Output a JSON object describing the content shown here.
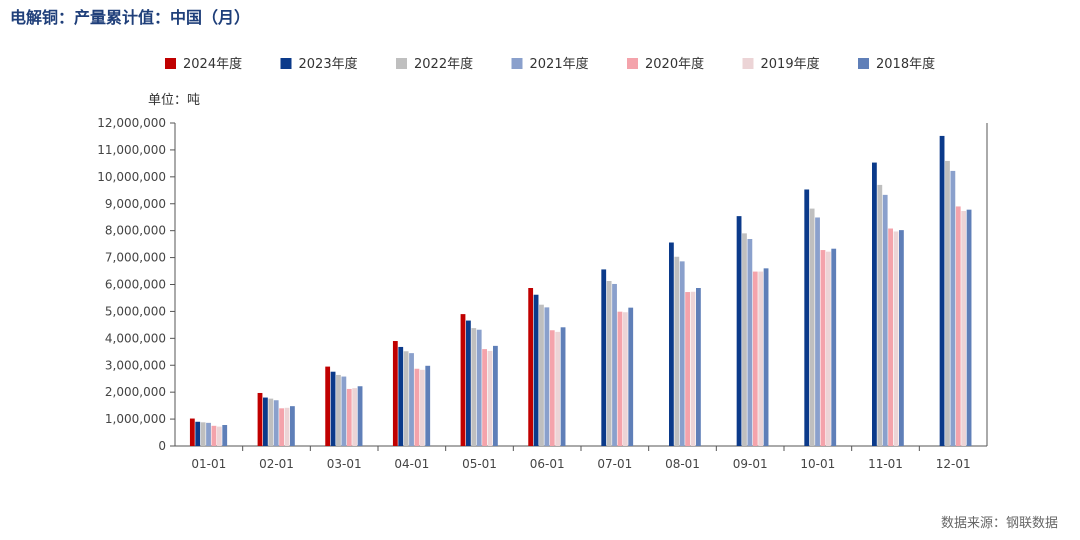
{
  "header": {
    "title": "电解铜：产量累计值：中国（月）"
  },
  "footer": {
    "source": "数据来源：钢联数据"
  },
  "chart_data": {
    "type": "bar",
    "title": "电解铜：产量累计值：中国（月）",
    "unit_label": "单位：吨",
    "xlabel": "",
    "ylabel": "",
    "ylim": [
      0,
      12000000
    ],
    "yticks": [
      0,
      1000000,
      2000000,
      3000000,
      4000000,
      5000000,
      6000000,
      7000000,
      8000000,
      9000000,
      10000000,
      11000000,
      12000000
    ],
    "ytick_labels": [
      "0",
      "1,000,000",
      "2,000,000",
      "3,000,000",
      "4,000,000",
      "5,000,000",
      "6,000,000",
      "7,000,000",
      "8,000,000",
      "9,000,000",
      "10,000,000",
      "11,000,000",
      "12,000,000"
    ],
    "legend_position": "top",
    "grid": false,
    "categories": [
      "01-01",
      "02-01",
      "03-01",
      "04-01",
      "05-01",
      "06-01",
      "07-01",
      "08-01",
      "09-01",
      "10-01",
      "11-01",
      "12-01"
    ],
    "series": [
      {
        "name": "2024年度",
        "color": "#c00000",
        "values": [
          1020000,
          1970000,
          2950000,
          3900000,
          4900000,
          5870000,
          null,
          null,
          null,
          null,
          null,
          null
        ]
      },
      {
        "name": "2023年度",
        "color": "#0b3a8a",
        "values": [
          900000,
          1800000,
          2760000,
          3680000,
          4660000,
          5620000,
          6560000,
          7560000,
          8540000,
          9530000,
          10530000,
          11520000
        ]
      },
      {
        "name": "2022年度",
        "color": "#bfbfbf",
        "values": [
          880000,
          1760000,
          2640000,
          3520000,
          4380000,
          5250000,
          6130000,
          7030000,
          7900000,
          8820000,
          9700000,
          10590000
        ]
      },
      {
        "name": "2021年度",
        "color": "#8aa0cc",
        "values": [
          860000,
          1700000,
          2580000,
          3450000,
          4320000,
          5150000,
          6020000,
          6860000,
          7690000,
          8490000,
          9330000,
          10220000
        ]
      },
      {
        "name": "2020年度",
        "color": "#f4a3ab",
        "values": [
          750000,
          1400000,
          2120000,
          2870000,
          3600000,
          4300000,
          4990000,
          5720000,
          6480000,
          7280000,
          8080000,
          8900000
        ]
      },
      {
        "name": "2019年度",
        "color": "#ecd4d6",
        "values": [
          720000,
          1420000,
          2150000,
          2830000,
          3530000,
          4240000,
          4970000,
          5730000,
          6480000,
          7220000,
          7970000,
          8730000
        ]
      },
      {
        "name": "2018年度",
        "color": "#5f7fb8",
        "values": [
          780000,
          1480000,
          2220000,
          2980000,
          3720000,
          4410000,
          5140000,
          5870000,
          6600000,
          7330000,
          8020000,
          8780000
        ]
      }
    ]
  }
}
